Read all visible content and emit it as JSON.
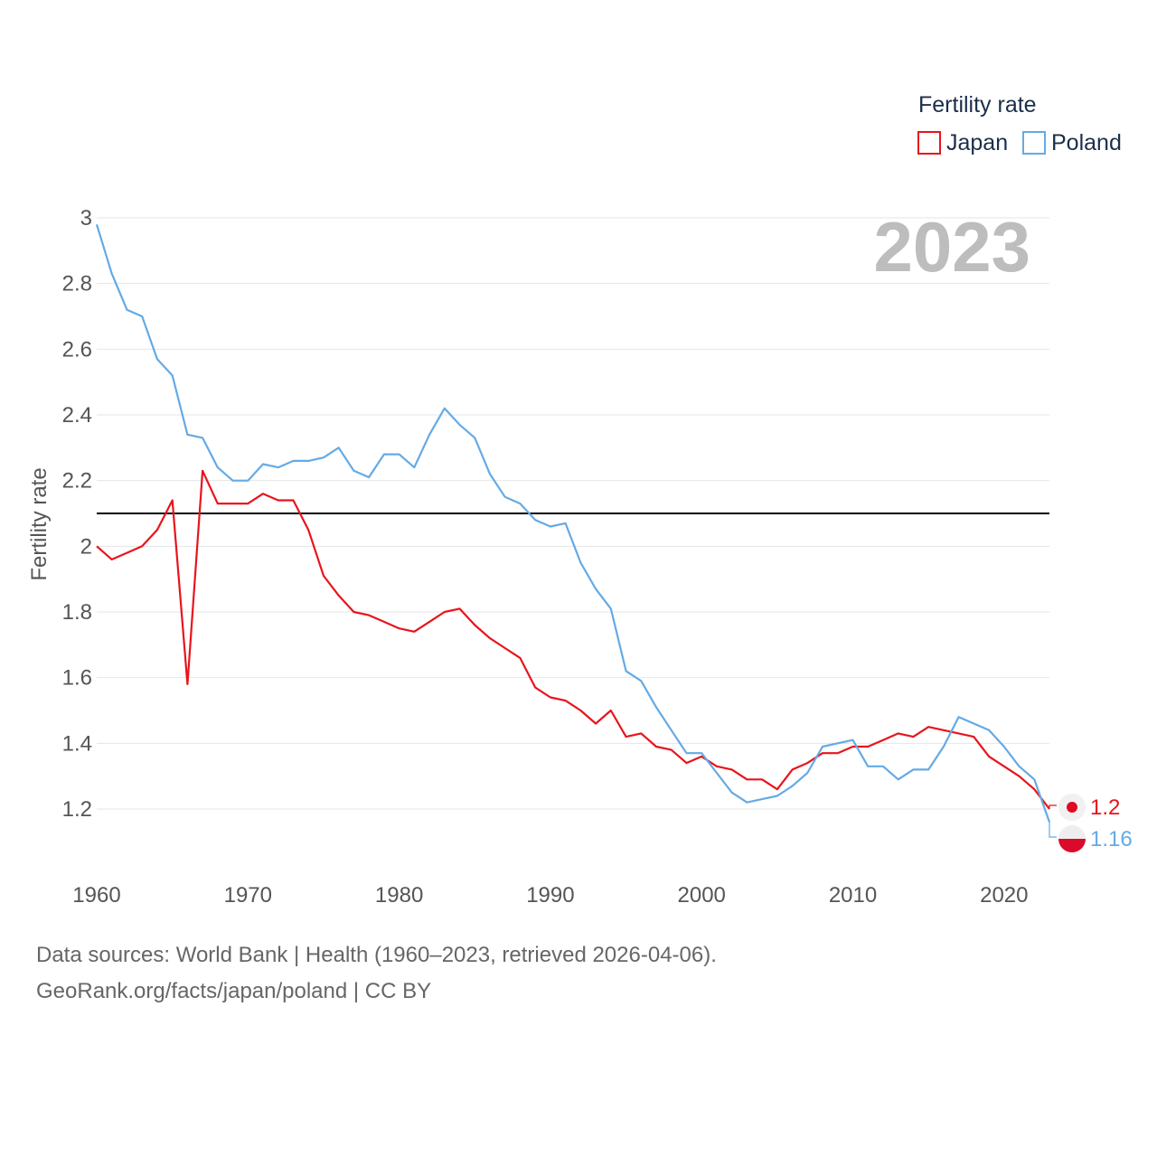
{
  "chart_data": {
    "type": "line",
    "title": "",
    "xlabel": "",
    "ylabel": "Fertility rate",
    "xlim": [
      1960,
      2023
    ],
    "ylim": [
      1.1,
      3.0
    ],
    "xticks": [
      1960,
      1970,
      1980,
      1990,
      2000,
      2010,
      2020
    ],
    "yticks": [
      1.2,
      1.4,
      1.6,
      1.8,
      2,
      2.2,
      2.4,
      2.6,
      2.8,
      3
    ],
    "legend_title": "Fertility rate",
    "legend_position": "top-right",
    "year_label": "2023",
    "reference_line": {
      "value": 2.1,
      "color": "#000000"
    },
    "x": [
      1960,
      1961,
      1962,
      1963,
      1964,
      1965,
      1966,
      1967,
      1968,
      1969,
      1970,
      1971,
      1972,
      1973,
      1974,
      1975,
      1976,
      1977,
      1978,
      1979,
      1980,
      1981,
      1982,
      1983,
      1984,
      1985,
      1986,
      1987,
      1988,
      1989,
      1990,
      1991,
      1992,
      1993,
      1994,
      1995,
      1996,
      1997,
      1998,
      1999,
      2000,
      2001,
      2002,
      2003,
      2004,
      2005,
      2006,
      2007,
      2008,
      2009,
      2010,
      2011,
      2012,
      2013,
      2014,
      2015,
      2016,
      2017,
      2018,
      2019,
      2020,
      2021,
      2022,
      2023
    ],
    "series": [
      {
        "name": "Japan",
        "color": "#e8141c",
        "end_label": "1.2",
        "flag": "japan-flag",
        "values": [
          2.0,
          1.96,
          1.98,
          2.0,
          2.05,
          2.14,
          1.58,
          2.23,
          2.13,
          2.13,
          2.13,
          2.16,
          2.14,
          2.14,
          2.05,
          1.91,
          1.85,
          1.8,
          1.79,
          1.77,
          1.75,
          1.74,
          1.77,
          1.8,
          1.81,
          1.76,
          1.72,
          1.69,
          1.66,
          1.57,
          1.54,
          1.53,
          1.5,
          1.46,
          1.5,
          1.42,
          1.43,
          1.39,
          1.38,
          1.34,
          1.36,
          1.33,
          1.32,
          1.29,
          1.29,
          1.26,
          1.32,
          1.34,
          1.37,
          1.37,
          1.39,
          1.39,
          1.41,
          1.43,
          1.42,
          1.45,
          1.44,
          1.43,
          1.42,
          1.36,
          1.33,
          1.3,
          1.26,
          1.2
        ]
      },
      {
        "name": "Poland",
        "color": "#64aae6",
        "end_label": "1.16",
        "flag": "poland-flag",
        "values": [
          2.98,
          2.83,
          2.72,
          2.7,
          2.57,
          2.52,
          2.34,
          2.33,
          2.24,
          2.2,
          2.2,
          2.25,
          2.24,
          2.26,
          2.26,
          2.27,
          2.3,
          2.23,
          2.21,
          2.28,
          2.28,
          2.24,
          2.34,
          2.42,
          2.37,
          2.33,
          2.22,
          2.15,
          2.13,
          2.08,
          2.06,
          2.07,
          1.95,
          1.87,
          1.81,
          1.62,
          1.59,
          1.51,
          1.44,
          1.37,
          1.37,
          1.31,
          1.25,
          1.22,
          1.23,
          1.24,
          1.27,
          1.31,
          1.39,
          1.4,
          1.41,
          1.33,
          1.33,
          1.29,
          1.32,
          1.32,
          1.39,
          1.48,
          1.46,
          1.44,
          1.39,
          1.33,
          1.29,
          1.16
        ]
      }
    ]
  },
  "footer": {
    "source_line": "Data sources: World Bank | Health (1960–2023, retrieved 2026-04-06).",
    "url_line": "GeoRank.org/facts/japan/poland | CC BY"
  }
}
